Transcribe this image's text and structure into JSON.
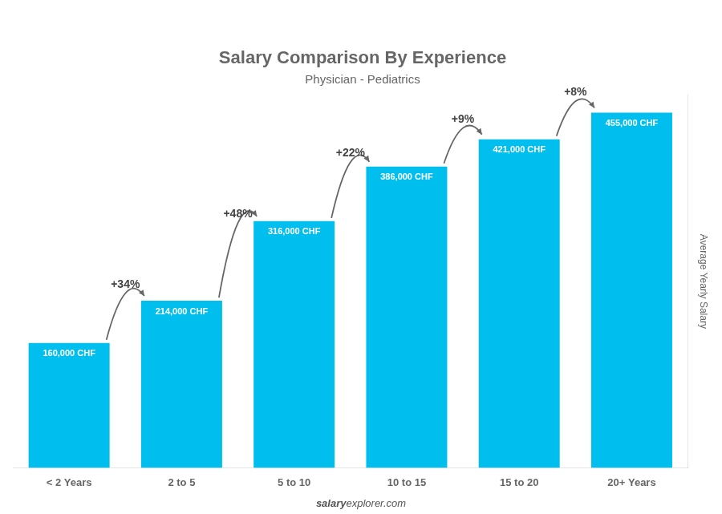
{
  "chart_data": {
    "type": "bar",
    "title": "Salary Comparison By Experience",
    "subtitle": "Physician - Pediatrics",
    "ylabel": "Average Yearly Salary",
    "categories": [
      "< 2 Years",
      "2 to 5",
      "5 to 10",
      "10 to 15",
      "15 to 20",
      "20+ Years"
    ],
    "values": [
      160000,
      214000,
      316000,
      386000,
      421000,
      455000
    ],
    "value_labels": [
      "160,000 CHF",
      "214,000 CHF",
      "316,000 CHF",
      "386,000 CHF",
      "421,000 CHF",
      "455,000 CHF"
    ],
    "data_labels": true,
    "pct_changes": [
      null,
      "+34%",
      "+48%",
      "+22%",
      "+9%",
      "+8%"
    ],
    "annotations": [
      "salary",
      "explorer.com"
    ],
    "color": "#00bfef",
    "ylim": [
      0,
      477750
    ],
    "tick_labels": "x",
    "grid": false
  }
}
